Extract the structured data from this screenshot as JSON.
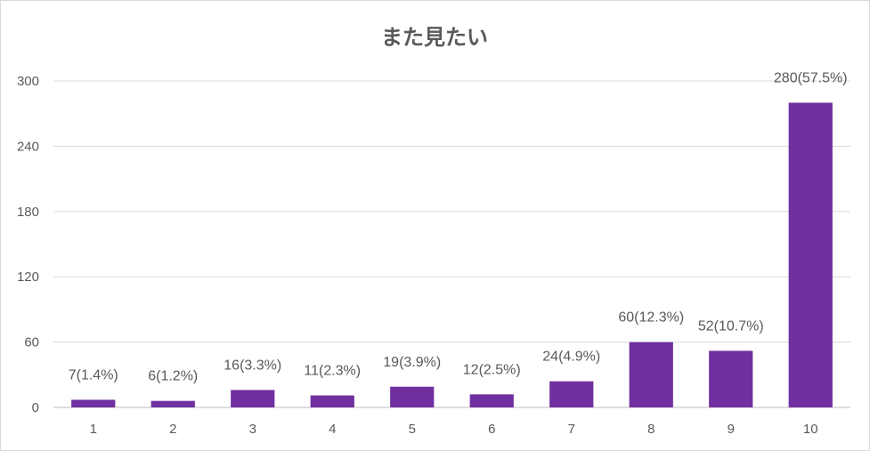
{
  "chart_data": {
    "type": "bar",
    "title": "また見たい",
    "xlabel": "",
    "ylabel": "",
    "categories": [
      "1",
      "2",
      "3",
      "4",
      "5",
      "6",
      "7",
      "8",
      "9",
      "10"
    ],
    "values": [
      7,
      6,
      16,
      11,
      19,
      12,
      24,
      60,
      52,
      280
    ],
    "data_labels": [
      "7(1.4%)",
      "6(1.2%)",
      "16(3.3%)",
      "11(2.3%)",
      "19(3.9%)",
      "12(2.5%)",
      "24(4.9%)",
      "60(12.3%)",
      "52(10.7%)",
      "280(57.5%)"
    ],
    "ylim": [
      0,
      300
    ],
    "yticks": [
      "0",
      "60",
      "120",
      "180",
      "240",
      "300"
    ],
    "grid": true,
    "legend": "none",
    "bar_color": "#7030A0",
    "grid_color": "#d9d9d9"
  }
}
